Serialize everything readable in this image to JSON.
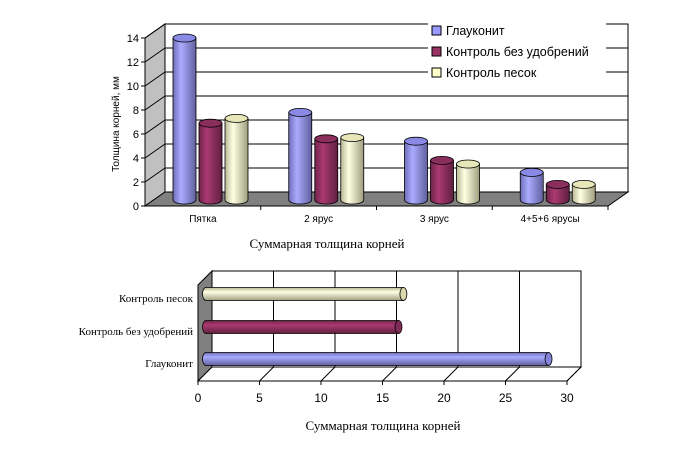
{
  "colors": {
    "series": [
      "#9999ff",
      "#993366",
      "#ffffcc"
    ],
    "series_dark": [
      "#5c5cc8",
      "#5e1e3d",
      "#c9c99a"
    ],
    "floor": "#808080",
    "wall": "#ffffff",
    "grid": "#000000"
  },
  "chart_data": [
    {
      "type": "bar",
      "style": "3d-cylinder",
      "orientation": "vertical",
      "title": "",
      "xlabel": "Суммарная толщина корней",
      "ylabel": "Толщина корней, мм",
      "categories": [
        "Пятка",
        "2 ярус",
        "3 ярус",
        "4+5+6 ярусы"
      ],
      "series": [
        {
          "name": "Глауконит",
          "values": [
            13.5,
            7.3,
            4.9,
            2.3
          ]
        },
        {
          "name": "Контроль без удобрений",
          "values": [
            6.4,
            5.1,
            3.3,
            1.3
          ]
        },
        {
          "name": "Контроль песок",
          "values": [
            6.8,
            5.2,
            3.0,
            1.3
          ]
        }
      ],
      "ylim": [
        0,
        14
      ],
      "yticks": [
        "0",
        "2",
        "4",
        "6",
        "8",
        "10",
        "12",
        "14"
      ],
      "grid": true,
      "legend": "top-right"
    },
    {
      "type": "bar",
      "style": "3d-cylinder",
      "orientation": "horizontal",
      "title": "",
      "xlabel": "Суммарная толщина корней",
      "categories": [
        "Контроль песок",
        "Контроль без удобрений",
        "Глауконит"
      ],
      "values": [
        16.7,
        16.3,
        28.5
      ],
      "colors": [
        "#ffffcc",
        "#993366",
        "#9999ff"
      ],
      "xlim": [
        0,
        30
      ],
      "xticks": [
        "0",
        "5",
        "10",
        "15",
        "20",
        "25",
        "30"
      ],
      "grid": true
    }
  ]
}
